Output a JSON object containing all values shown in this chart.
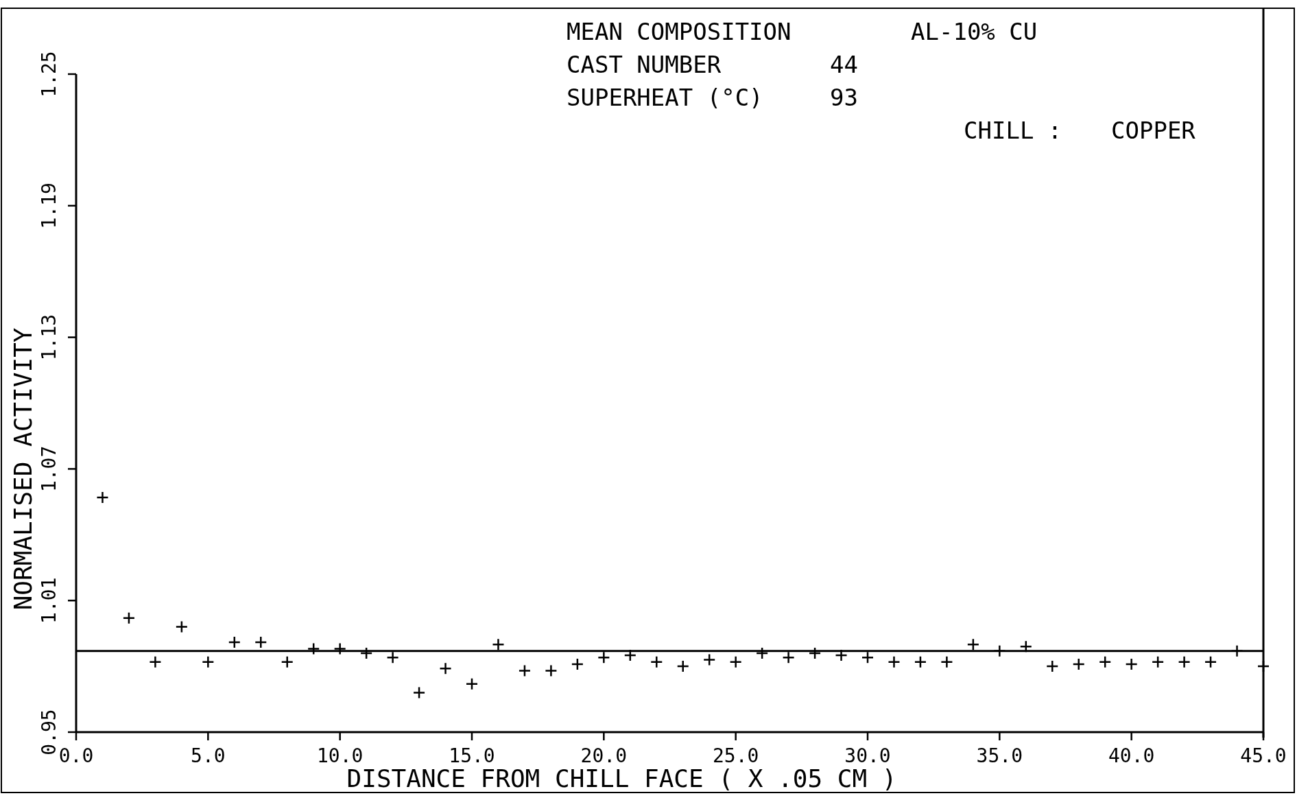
{
  "chart_data": {
    "type": "scatter",
    "xlabel": "DISTANCE FROM CHILL FACE ( X .05 CM )",
    "ylabel": "NORMALISED ACTIVITY",
    "annotations": [
      "MEAN COMPOSITION",
      "AL-10% CU",
      "CAST NUMBER",
      "44",
      "SUPERHEAT (°C)",
      "93",
      "CHILL :",
      "COPPER"
    ],
    "x": [
      1,
      2,
      3,
      4,
      5,
      6,
      7,
      8,
      9,
      10,
      11,
      12,
      13,
      14,
      15,
      16,
      17,
      18,
      19,
      20,
      21,
      22,
      23,
      24,
      25,
      26,
      27,
      28,
      29,
      30,
      31,
      32,
      33,
      34,
      35,
      36,
      37,
      38,
      39,
      40,
      41,
      42,
      43,
      44,
      45
    ],
    "series": [
      {
        "color": "#000000",
        "values": [
          1.057,
          1.002,
          0.982,
          0.998,
          0.982,
          0.991,
          0.991,
          0.982,
          0.988,
          0.988,
          0.986,
          0.984,
          0.968,
          0.979,
          0.972,
          0.99,
          0.978,
          0.978,
          0.981,
          0.984,
          0.985,
          0.982,
          0.98,
          0.983,
          0.982,
          0.986,
          0.984,
          0.986,
          0.985,
          0.984,
          0.982,
          0.982,
          0.982,
          0.99,
          0.987,
          0.989,
          0.98,
          0.981,
          0.982,
          0.981,
          0.982,
          0.982,
          0.982,
          0.987,
          0.98
        ]
      }
    ],
    "marker": "cross",
    "ref_lines": [
      {
        "axis": "y",
        "value": 0.987,
        "color": "#000000"
      }
    ],
    "xlim": [
      0,
      45
    ],
    "xticks": [
      {
        "value": 0,
        "label": "0.0"
      },
      {
        "value": 5,
        "label": "5.0"
      },
      {
        "value": 10,
        "label": "10.0"
      },
      {
        "value": 15,
        "label": "15.0"
      },
      {
        "value": 20,
        "label": "20.0"
      },
      {
        "value": 25,
        "label": "25.0"
      },
      {
        "value": 30,
        "label": "30.0"
      },
      {
        "value": 35,
        "label": "35.0"
      },
      {
        "value": 40,
        "label": "40.0"
      },
      {
        "value": 45,
        "label": "45.0"
      }
    ],
    "ylim": [
      0.95,
      1.25
    ],
    "yticks": [
      0.95,
      1.01,
      1.07,
      1.13,
      1.19,
      1.25
    ]
  }
}
